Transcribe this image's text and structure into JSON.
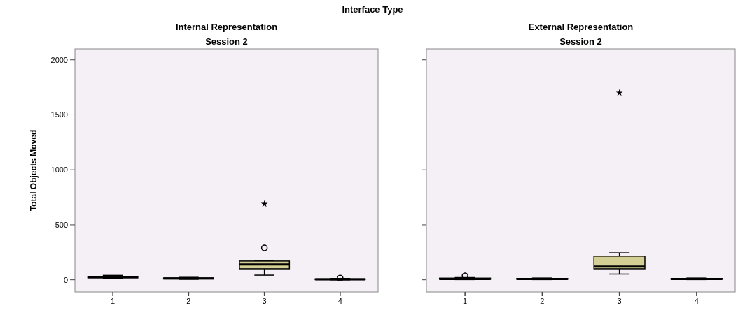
{
  "chart_data": [
    {
      "type": "box",
      "title": "Internal Representation",
      "subtitle": "Session 2",
      "ylabel": "Total Objects Moved",
      "annotations": [
        "Interface Type"
      ],
      "categories": [
        "1",
        "2",
        "3",
        "4"
      ],
      "ylim": [
        -110,
        2100
      ],
      "yticks": [
        0,
        500,
        1000,
        1500,
        2000
      ],
      "color": "#d4cf94",
      "boxes": [
        {
          "low": 15,
          "q1": 18,
          "median": 25,
          "q3": 30,
          "high": 40
        },
        {
          "low": 5,
          "q1": 8,
          "median": 12,
          "q3": 16,
          "high": 22
        },
        {
          "low": 42,
          "q1": 100,
          "median": 140,
          "q3": 170,
          "high": 170,
          "outliers": [
            290,
            690
          ]
        },
        {
          "low": 0,
          "q1": 2,
          "median": 5,
          "q3": 8,
          "high": 12,
          "outliers": [
            15
          ]
        }
      ]
    },
    {
      "type": "box",
      "title": "External Representation",
      "subtitle": "Session 2",
      "categories": [
        "1",
        "2",
        "3",
        "4"
      ],
      "ylim": [
        -110,
        2100
      ],
      "yticks": [
        0,
        500,
        1000,
        1500,
        2000
      ],
      "tick_labels": "x",
      "color": "#d4cf94",
      "boxes": [
        {
          "low": 2,
          "q1": 5,
          "median": 8,
          "q3": 15,
          "high": 20,
          "outliers": [
            36
          ]
        },
        {
          "low": 2,
          "q1": 5,
          "median": 8,
          "q3": 12,
          "high": 16
        },
        {
          "low": 52,
          "q1": 100,
          "median": 120,
          "q3": 215,
          "high": 245,
          "outliers": [
            1700
          ]
        },
        {
          "low": 2,
          "q1": 5,
          "median": 8,
          "q3": 12,
          "high": 16
        }
      ]
    }
  ]
}
